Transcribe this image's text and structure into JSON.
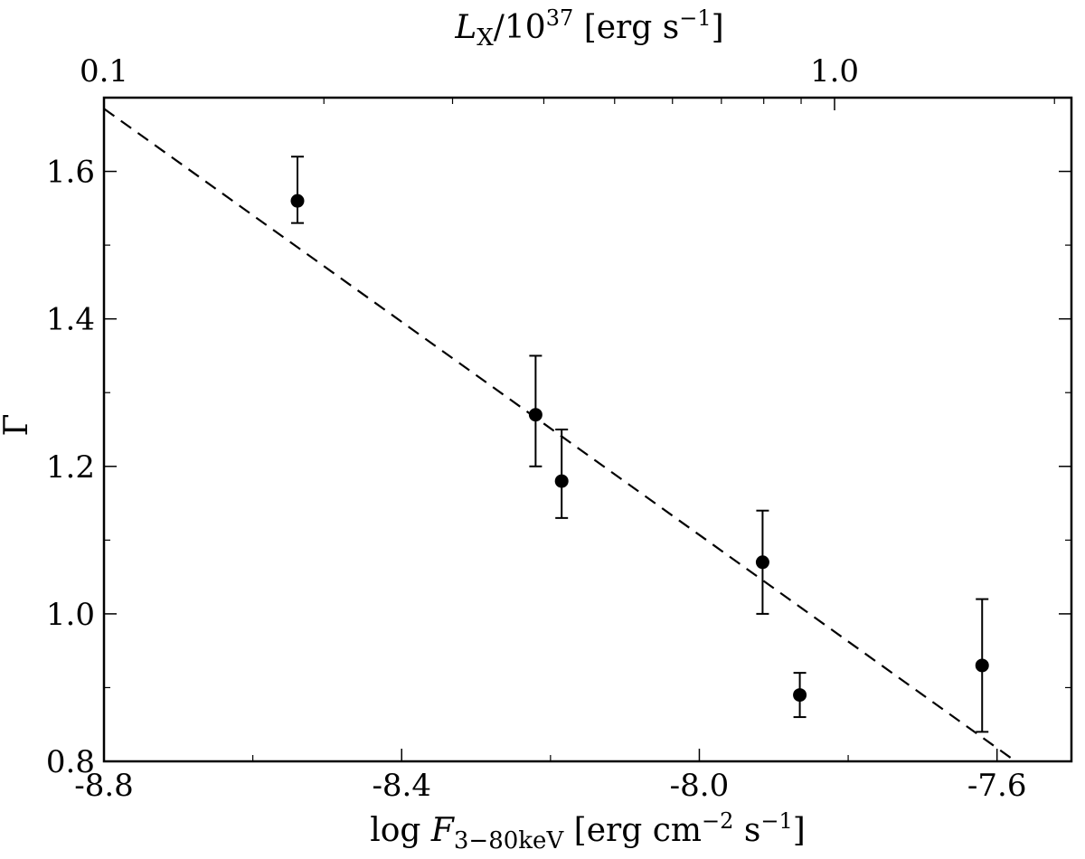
{
  "chart_data": {
    "type": "scatter",
    "x_axis": {
      "label_prefix": "log ",
      "label_var": "F",
      "label_sub": "3−80keV",
      "label_units_a": " [erg cm",
      "label_units_exp": "−2",
      "label_units_b": " s",
      "label_units_exp2": "−1",
      "label_units_c": "]",
      "range": [
        -8.8,
        -7.5
      ],
      "ticks": [
        -8.8,
        -8.4,
        -8.0,
        -7.6
      ],
      "tick_labels": [
        "-8.8",
        "-8.4",
        "-8.0",
        "-7.6"
      ]
    },
    "top_axis": {
      "label_var": "L",
      "label_sub": "X",
      "label_mid": "/10",
      "label_exp": "37",
      "label_units_a": " [erg s",
      "label_units_exp": "−1",
      "label_units_b": "]",
      "scale": "log",
      "ticks": [
        0.1,
        1.0
      ],
      "tick_labels": [
        "0.1",
        "1.0"
      ]
    },
    "y_axis": {
      "label": "Γ",
      "range": [
        0.8,
        1.7
      ],
      "ticks": [
        0.8,
        1.0,
        1.2,
        1.4,
        1.6
      ],
      "tick_labels": [
        "0.8",
        "1.0",
        "1.2",
        "1.4",
        "1.6"
      ]
    },
    "points": [
      {
        "x": -8.54,
        "y": 1.56,
        "err_low": 0.03,
        "err_high": 0.06
      },
      {
        "x": -8.22,
        "y": 1.27,
        "err_low": 0.07,
        "err_high": 0.08
      },
      {
        "x": -8.185,
        "y": 1.18,
        "err_low": 0.05,
        "err_high": 0.07
      },
      {
        "x": -7.915,
        "y": 1.07,
        "err_low": 0.07,
        "err_high": 0.07
      },
      {
        "x": -7.865,
        "y": 0.89,
        "err_low": 0.03,
        "err_high": 0.03
      },
      {
        "x": -7.62,
        "y": 0.93,
        "err_low": 0.09,
        "err_high": 0.09
      }
    ],
    "fit_line": {
      "style": "dashed",
      "x": [
        -8.8,
        -7.575
      ],
      "y": [
        1.685,
        0.8
      ]
    },
    "grid": false,
    "legend": "none"
  }
}
